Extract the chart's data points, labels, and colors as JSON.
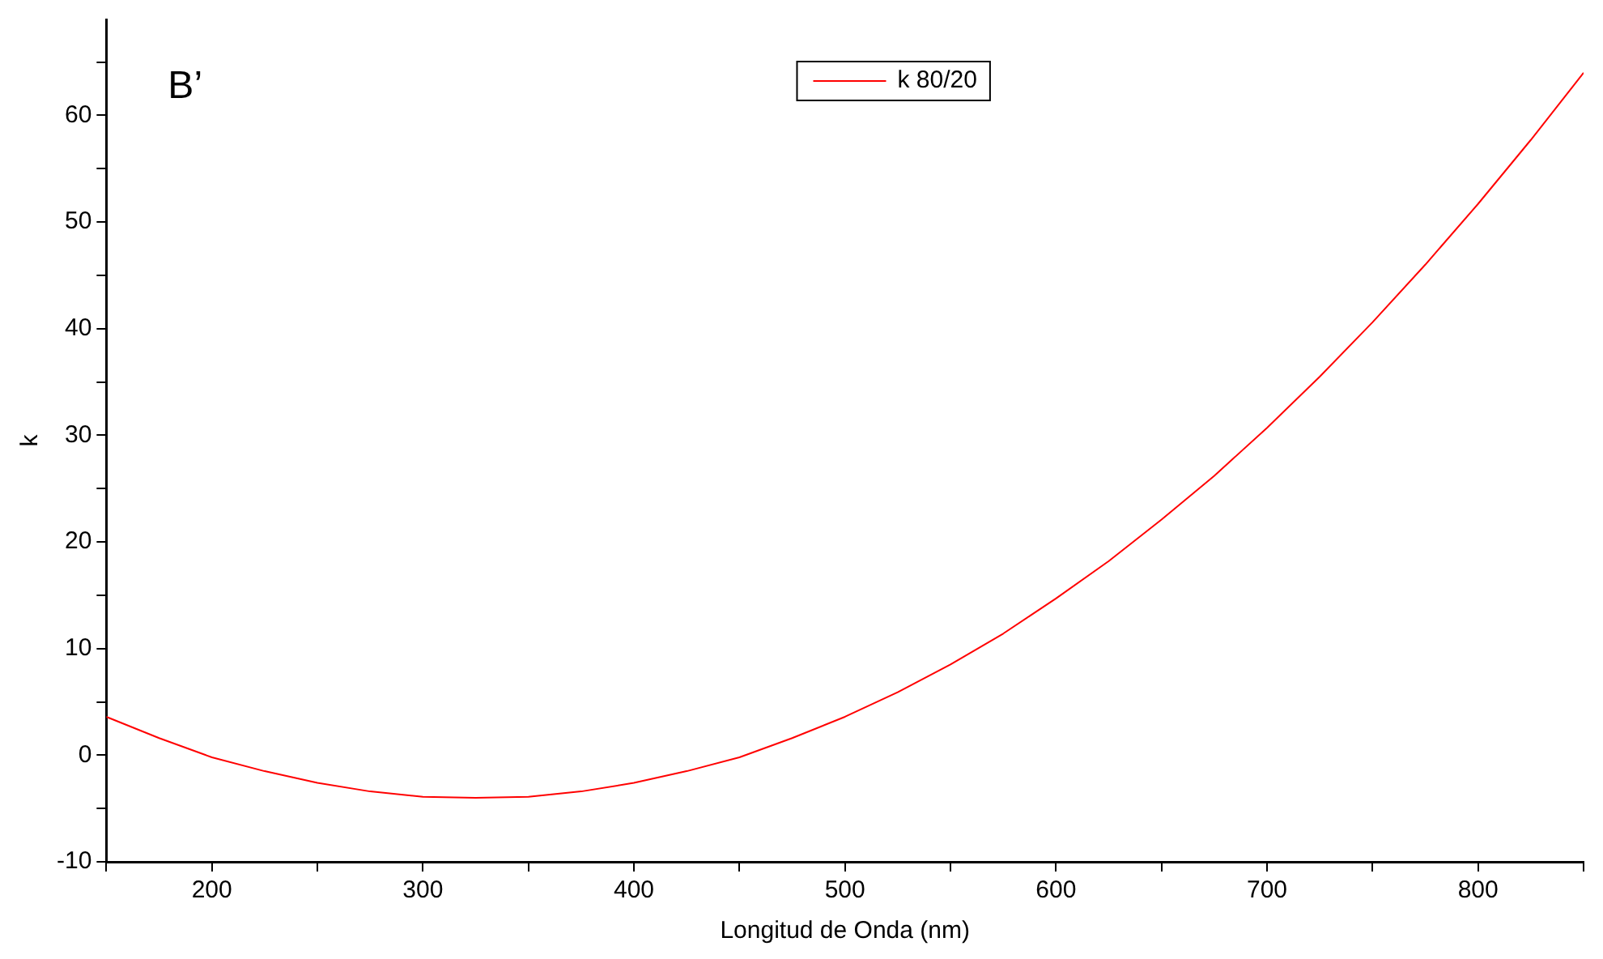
{
  "chart_data": {
    "type": "line",
    "xlabel": "Longitud de Onda (nm)",
    "ylabel": "k",
    "annotations": [
      "B’"
    ],
    "legend": "top",
    "marker": "none",
    "line_style": "solid",
    "grid": false,
    "x": [
      150,
      175,
      200,
      225,
      250,
      275,
      300,
      325,
      350,
      375,
      400,
      425,
      450,
      475,
      500,
      525,
      550,
      575,
      600,
      625,
      650,
      675,
      700,
      725,
      750,
      775,
      800,
      825,
      850
    ],
    "series": [
      {
        "name": "k 80/20",
        "color": "#ff0000",
        "values": [
          3.6,
          1.6,
          -0.2,
          -1.5,
          -2.6,
          -3.4,
          -3.9,
          -4.0,
          -3.9,
          -3.4,
          -2.6,
          -1.5,
          -0.2,
          1.6,
          3.6,
          5.9,
          8.5,
          11.4,
          14.7,
          18.2,
          22.1,
          26.2,
          30.7,
          35.5,
          40.6,
          46.0,
          51.7,
          57.7,
          64.0
        ]
      }
    ],
    "xlim": [
      150,
      850
    ],
    "xticks": [
      {
        "value": 150,
        "label": null
      },
      200,
      {
        "value": 250,
        "label": null
      },
      300,
      {
        "value": 350,
        "label": null
      },
      400,
      {
        "value": 450,
        "label": null
      },
      500,
      {
        "value": 550,
        "label": null
      },
      600,
      {
        "value": 650,
        "label": null
      },
      700,
      {
        "value": 750,
        "label": null
      },
      800,
      {
        "value": 850,
        "label": null
      }
    ],
    "ylim": [
      -10,
      69
    ],
    "yticks": [
      -10,
      {
        "value": -5,
        "label": null
      },
      0,
      {
        "value": 5,
        "label": null
      },
      10,
      {
        "value": 15,
        "label": null
      },
      20,
      {
        "value": 25,
        "label": null
      },
      30,
      {
        "value": 35,
        "label": null
      },
      40,
      {
        "value": 45,
        "label": null
      },
      50,
      {
        "value": 55,
        "label": null
      },
      60,
      {
        "value": 65,
        "label": null
      }
    ]
  }
}
